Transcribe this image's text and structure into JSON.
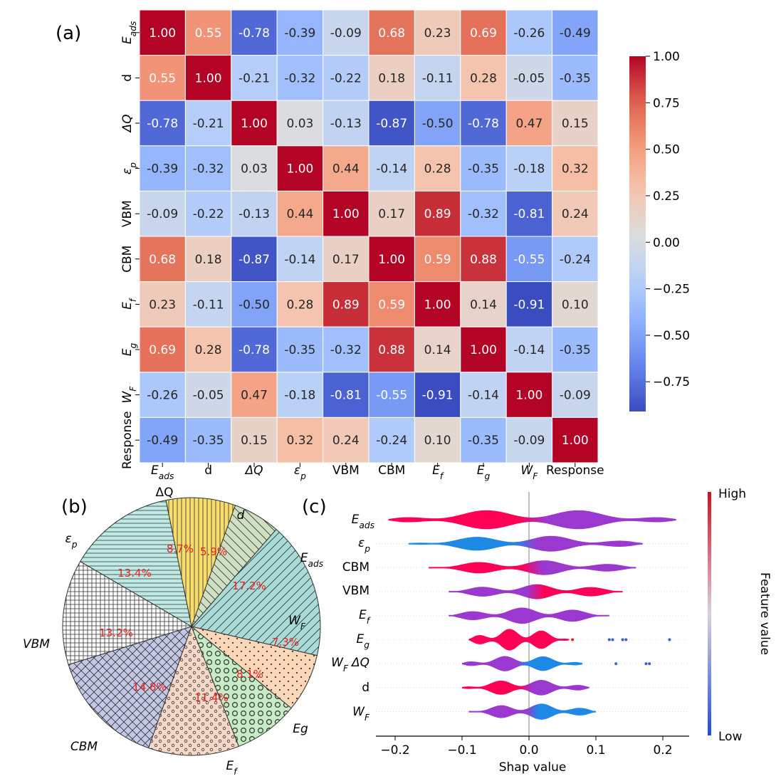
{
  "panel_labels": {
    "a": "(a)",
    "b": "(b)",
    "c": "(c)"
  },
  "labels": {
    "Eads": {
      "base": "E",
      "sub": "ads"
    },
    "d": {
      "base": "d",
      "sub": ""
    },
    "dQ": {
      "base": "ΔQ",
      "sub": ""
    },
    "ep": {
      "base": "ε",
      "sub": "p"
    },
    "VBM": {
      "base": "VBM",
      "sub": ""
    },
    "CBM": {
      "base": "CBM",
      "sub": ""
    },
    "Ef": {
      "base": "E",
      "sub": "f"
    },
    "Eg": {
      "base": "E",
      "sub": "g"
    },
    "WF": {
      "base": "W",
      "sub": "F"
    },
    "Response": {
      "base": "Response",
      "sub": ""
    }
  },
  "colors": {
    "high": "#b40426",
    "mid": "#dddddd",
    "low": "#3b4cc0",
    "pct_text": "#e8201c",
    "shap_high": "#ff0052",
    "shap_low": "#1e88e5",
    "shap_mid": "#9a38d0"
  },
  "chart_data": [
    {
      "type": "heatmap",
      "keys": [
        "Eads",
        "d",
        "dQ",
        "ep",
        "VBM",
        "CBM",
        "Ef",
        "Eg",
        "WF",
        "Response"
      ],
      "matrix": [
        [
          1.0,
          0.55,
          -0.78,
          -0.39,
          -0.09,
          0.68,
          0.23,
          0.69,
          -0.26,
          -0.49
        ],
        [
          0.55,
          1.0,
          -0.21,
          -0.32,
          -0.22,
          0.18,
          -0.11,
          0.28,
          -0.05,
          -0.35
        ],
        [
          -0.78,
          -0.21,
          1.0,
          0.03,
          -0.13,
          -0.87,
          -0.5,
          -0.78,
          0.47,
          0.15
        ],
        [
          -0.39,
          -0.32,
          0.03,
          1.0,
          0.44,
          -0.14,
          0.28,
          -0.35,
          -0.18,
          0.32
        ],
        [
          -0.09,
          -0.22,
          -0.13,
          0.44,
          1.0,
          0.17,
          0.89,
          -0.32,
          -0.81,
          0.24
        ],
        [
          0.68,
          0.18,
          -0.87,
          -0.14,
          0.17,
          1.0,
          0.59,
          0.88,
          -0.55,
          -0.24
        ],
        [
          0.23,
          -0.11,
          -0.5,
          0.28,
          0.89,
          0.59,
          1.0,
          0.14,
          -0.91,
          0.1
        ],
        [
          0.69,
          0.28,
          -0.78,
          -0.35,
          -0.32,
          0.88,
          0.14,
          1.0,
          -0.14,
          -0.35
        ],
        [
          -0.26,
          -0.05,
          0.47,
          -0.18,
          -0.81,
          -0.55,
          -0.91,
          -0.14,
          1.0,
          -0.09
        ],
        [
          -0.49,
          -0.35,
          0.15,
          0.32,
          0.24,
          -0.24,
          0.1,
          -0.35,
          -0.09,
          1.0
        ]
      ],
      "cell_labels": [
        [
          "1.00",
          "0.55",
          "-0.78",
          "-0.39",
          "-0.09",
          "0.68",
          "0.23",
          "0.69",
          "-0.26",
          "-0.49"
        ],
        [
          "0.55",
          "1.00",
          "-0.21",
          "-0.32",
          "-0.22",
          "0.18",
          "-0.11",
          "0.28",
          "-0.05",
          "-0.35"
        ],
        [
          "-0.78",
          "-0.21",
          "1.00",
          "0.03",
          "-0.13",
          "-0.87",
          "-0.50",
          "-0.78",
          "0.47",
          "0.15"
        ],
        [
          "-0.39",
          "-0.32",
          "0.03",
          "1.00",
          "0.44",
          "-0.14",
          "0.28",
          "-0.35",
          "-0.18",
          "0.32"
        ],
        [
          "-0.09",
          "-0.22",
          "-0.13",
          "0.44",
          "1.00",
          "0.17",
          "0.89",
          "-0.32",
          "-0.81",
          "0.24"
        ],
        [
          "0.68",
          "0.18",
          "-0.87",
          "-0.14",
          "0.17",
          "1.00",
          "0.59",
          "0.88",
          "-0.55",
          "-0.24"
        ],
        [
          "0.23",
          "-0.11",
          "-0.50",
          "0.28",
          "0.89",
          "0.59",
          "1.00",
          "0.14",
          "-0.91",
          "0.10"
        ],
        [
          "0.69",
          "0.28",
          "-0.78",
          "-0.35",
          "-0.32",
          "0.88",
          "0.14",
          "1.00",
          "-0.14",
          "-0.35"
        ],
        [
          "-0.26",
          "-0.05",
          "0.47",
          "-0.18",
          "-0.81",
          "-0.55",
          "-0.91",
          "-0.14",
          "1.00",
          "-0.09"
        ],
        [
          "-0.49",
          "-0.35",
          "0.15",
          "0.32",
          "0.24",
          "-0.24",
          "0.10",
          "-0.35",
          "-0.09",
          "1.00"
        ]
      ],
      "colorbar": {
        "min": -0.91,
        "max": 1.0,
        "ticks": [
          1.0,
          0.75,
          0.5,
          0.25,
          0.0,
          -0.25,
          -0.5,
          -0.75
        ],
        "tick_labels": [
          "1.00",
          "0.75",
          "0.50",
          "0.25",
          "0.00",
          "−0.25",
          "−0.50",
          "−0.75"
        ]
      },
      "colormap": "coolwarm"
    },
    {
      "type": "pie",
      "slices": [
        {
          "key": "Eads",
          "value": 17.2,
          "pct_label": "17.2%",
          "color": "#a9dcd8",
          "hatch": "diag-fwd"
        },
        {
          "key": "d",
          "value": 5.9,
          "pct_label": "5.9%",
          "color": "#cfe0c3",
          "hatch": "diag-back"
        },
        {
          "key": "dQ",
          "value": 8.7,
          "pct_label": "8.7%",
          "color": "#f8dc6c",
          "hatch": "vertical"
        },
        {
          "key": "ep",
          "value": 13.4,
          "pct_label": "13.4%",
          "color": "#bfe9e3",
          "hatch": "horizontal"
        },
        {
          "key": "VBM",
          "value": 13.2,
          "pct_label": "13.2%",
          "color": "#ffffff",
          "hatch": "grid"
        },
        {
          "key": "CBM",
          "value": 14.8,
          "pct_label": "14.8%",
          "color": "#c3c8e6",
          "hatch": "crosshatch"
        },
        {
          "key": "Ef",
          "value": 11.4,
          "pct_label": "11.4%",
          "color": "#f6d8c8",
          "hatch": "small-circles"
        },
        {
          "key": "Eg",
          "value": 8.1,
          "pct_label": "8.1%",
          "color": "#c6ecc6",
          "hatch": "circles"
        },
        {
          "key": "WF",
          "value": 7.3,
          "pct_label": "7.3%",
          "color": "#fbd7b8",
          "hatch": "dots"
        }
      ],
      "outer_labels": [
        {
          "key": "Eads",
          "text": "E",
          "sub": "ads"
        },
        {
          "key": "d",
          "text": "d",
          "sub": ""
        },
        {
          "key": "dQ",
          "text": "ΔQ",
          "sub": ""
        },
        {
          "key": "ep",
          "text": "ε",
          "sub": "p"
        },
        {
          "key": "VBM",
          "text": "VBM",
          "sub": ""
        },
        {
          "key": "CBM",
          "text": "CBM",
          "sub": ""
        },
        {
          "key": "Ef",
          "text": "E",
          "sub": "f"
        },
        {
          "key": "Eg",
          "text": "Eg",
          "sub": ""
        },
        {
          "key": "WF",
          "text": "W",
          "sub": "F"
        }
      ]
    },
    {
      "type": "violin",
      "title": "",
      "xlabel": "Shap value",
      "xlim": [
        -0.24,
        0.24
      ],
      "xticks": [
        -0.2,
        -0.1,
        0.0,
        0.1,
        0.2
      ],
      "xtick_labels": [
        "−0.2",
        "−0.1",
        "0.0",
        "0.1",
        "0.2"
      ],
      "colorbar_label": "Feature value",
      "colorbar_high": "High",
      "colorbar_low": "Low",
      "features": [
        {
          "key": "Eads",
          "range": [
            -0.21,
            0.22
          ],
          "halfwidth": 0.7,
          "left": "high",
          "right": "mid"
        },
        {
          "key": "ep",
          "range": [
            -0.18,
            0.17
          ],
          "halfwidth": 0.55,
          "left": "low",
          "right": "mid"
        },
        {
          "key": "CBM",
          "range": [
            -0.15,
            0.16
          ],
          "halfwidth": 0.5,
          "left": "high",
          "right": "mid"
        },
        {
          "key": "VBM",
          "range": [
            -0.12,
            0.14
          ],
          "halfwidth": 0.5,
          "left": "mid",
          "right": "high"
        },
        {
          "key": "Ef",
          "range": [
            -0.12,
            0.12
          ],
          "halfwidth": 0.55,
          "left": "mid",
          "right": "mid"
        },
        {
          "key": "Eg",
          "range": [
            -0.09,
            0.06
          ],
          "halfwidth": 0.75,
          "left": "high",
          "right": "high",
          "outliers": [
            0.065,
            0.12,
            0.125,
            0.14,
            0.145,
            0.21
          ]
        },
        {
          "key": "dQ",
          "range": [
            -0.1,
            0.08
          ],
          "halfwidth": 0.55,
          "left": "mid",
          "right": "low",
          "outliers": [
            0.13,
            0.175,
            0.18
          ]
        },
        {
          "key": "d",
          "range": [
            -0.1,
            0.09
          ],
          "halfwidth": 0.55,
          "left": "high",
          "right": "mid"
        },
        {
          "key": "WF",
          "range": [
            -0.09,
            0.1
          ],
          "halfwidth": 0.55,
          "left": "mid",
          "right": "low"
        }
      ],
      "ylabel_order": [
        "Eads",
        "ep",
        "CBM",
        "VBM",
        "Ef",
        "Eg",
        "WF_dQ",
        "d",
        "WF"
      ]
    }
  ]
}
